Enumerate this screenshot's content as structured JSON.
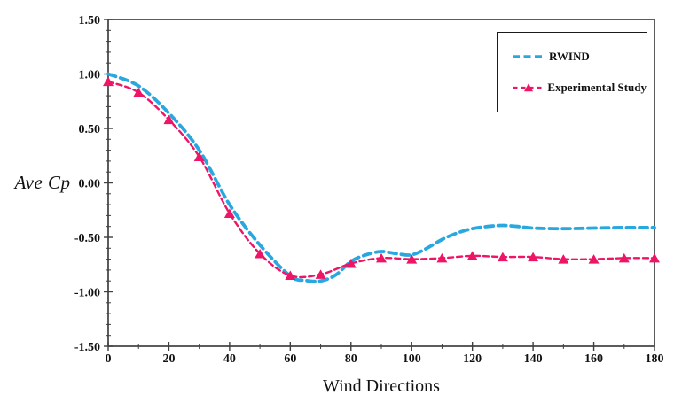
{
  "figure": {
    "background": "#ffffff",
    "frame_color": "#3f3f3f",
    "text_color": "#111111"
  },
  "chart_data": {
    "type": "line",
    "title": "",
    "xlabel": "Wind Directions",
    "ylabel": "Ave Cp",
    "xlim": [
      0,
      180
    ],
    "ylim": [
      -1.5,
      1.5
    ],
    "grid": false,
    "legend_position": "top-right",
    "x_tick_labels": [
      "0",
      "20",
      "40",
      "60",
      "80",
      "100",
      "120",
      "140",
      "160",
      "180"
    ],
    "y_tick_labels": [
      "1.50",
      "1.00",
      "0.50",
      "0.00",
      "-0.50",
      "-1.00",
      "-1.50"
    ],
    "x_minor_step": 10,
    "y_minor_step": 0.1,
    "series": [
      {
        "name": "RWIND",
        "color": "#29A8E0",
        "line_style": "dashed",
        "dash": "9 5.5",
        "line_width": 3.8,
        "marker": "none",
        "points": [
          [
            0,
            1.0
          ],
          [
            10,
            0.89
          ],
          [
            20,
            0.64
          ],
          [
            30,
            0.3
          ],
          [
            40,
            -0.2
          ],
          [
            50,
            -0.57
          ],
          [
            60,
            -0.855
          ],
          [
            65,
            -0.895
          ],
          [
            70,
            -0.9
          ],
          [
            75,
            -0.845
          ],
          [
            80,
            -0.72
          ],
          [
            85,
            -0.66
          ],
          [
            90,
            -0.63
          ],
          [
            95,
            -0.65
          ],
          [
            100,
            -0.66
          ],
          [
            105,
            -0.6
          ],
          [
            110,
            -0.52
          ],
          [
            115,
            -0.46
          ],
          [
            120,
            -0.42
          ],
          [
            125,
            -0.4
          ],
          [
            130,
            -0.39
          ],
          [
            135,
            -0.4
          ],
          [
            140,
            -0.415
          ],
          [
            150,
            -0.42
          ],
          [
            160,
            -0.415
          ],
          [
            170,
            -0.41
          ],
          [
            180,
            -0.41
          ]
        ]
      },
      {
        "name": "Experimental Study",
        "color": "#EE1566",
        "line_style": "dashed",
        "dash": "6 4",
        "line_width": 2.4,
        "marker": "triangle",
        "points": [
          [
            0,
            0.93
          ],
          [
            10,
            0.83
          ],
          [
            20,
            0.58
          ],
          [
            30,
            0.24
          ],
          [
            40,
            -0.28
          ],
          [
            50,
            -0.65
          ],
          [
            60,
            -0.85
          ],
          [
            70,
            -0.84
          ],
          [
            80,
            -0.74
          ],
          [
            90,
            -0.69
          ],
          [
            100,
            -0.7
          ],
          [
            110,
            -0.69
          ],
          [
            120,
            -0.67
          ],
          [
            130,
            -0.68
          ],
          [
            140,
            -0.68
          ],
          [
            150,
            -0.7
          ],
          [
            160,
            -0.7
          ],
          [
            170,
            -0.69
          ],
          [
            180,
            -0.69
          ]
        ]
      }
    ]
  }
}
